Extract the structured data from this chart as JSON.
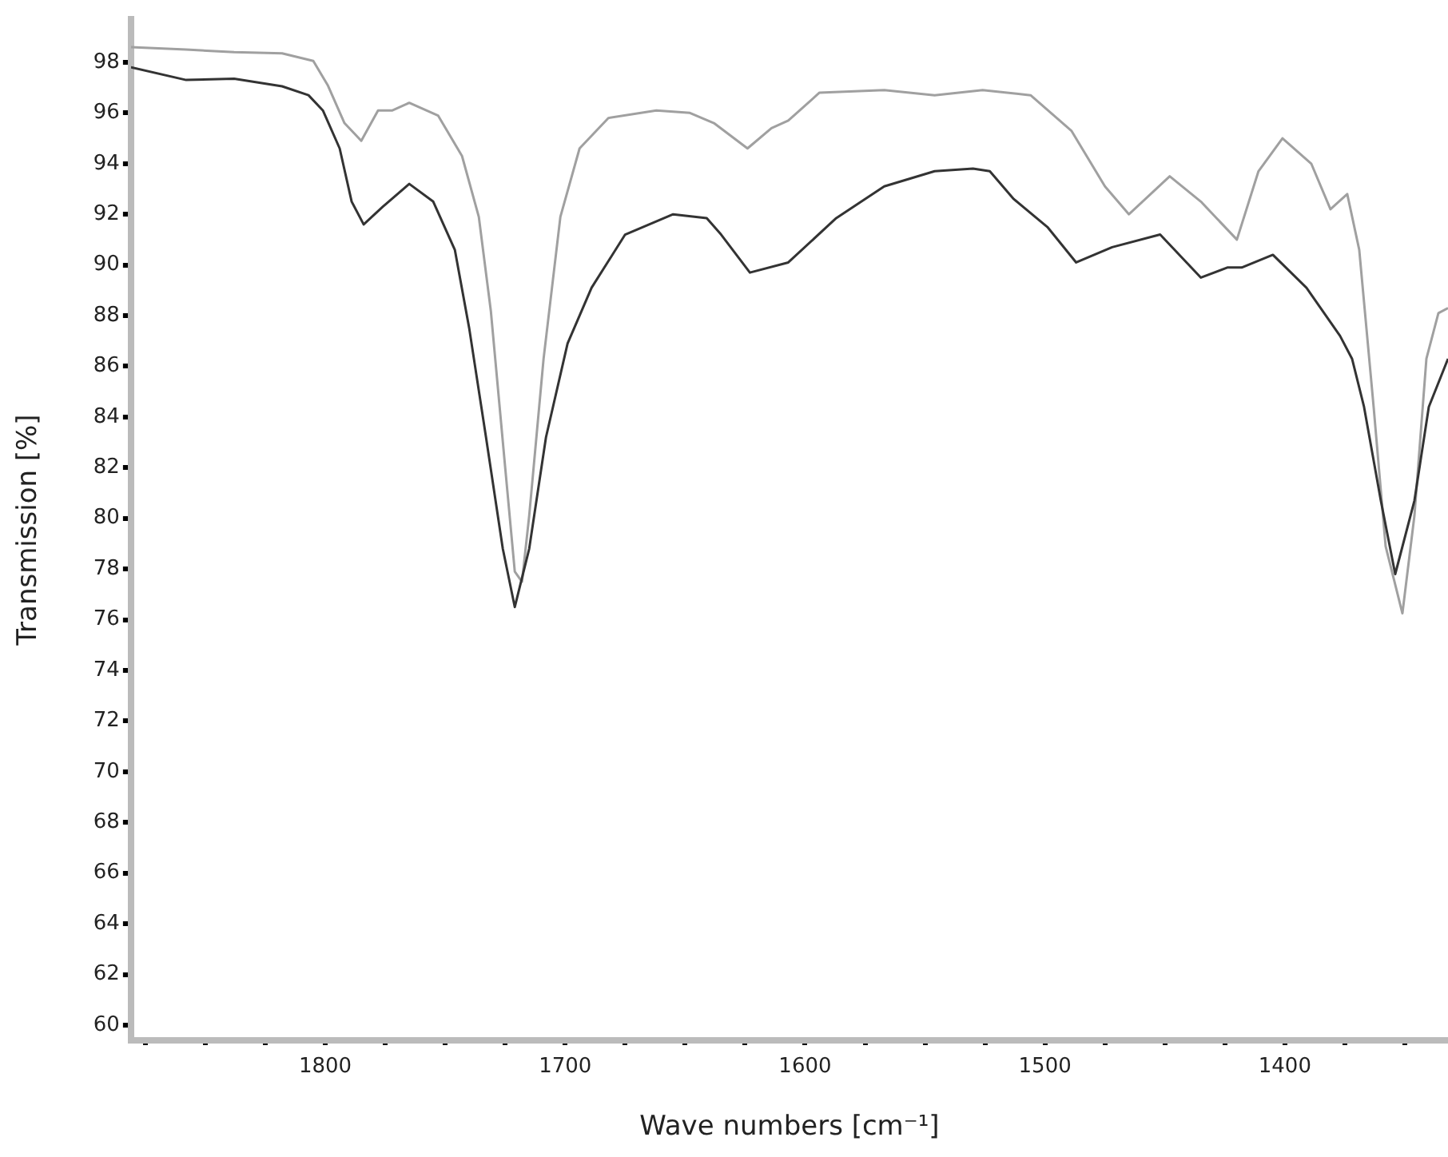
{
  "chart_data": {
    "type": "line",
    "xlabel": "Wave numbers [cm⁻¹]",
    "ylabel": "Transmission [%]",
    "xlim": [
      1881,
      1332
    ],
    "ylim": [
      59.4,
      99.7
    ],
    "xticks": [
      {
        "value": 1875,
        "label": null
      },
      {
        "value": 1850,
        "label": null
      },
      {
        "value": 1825,
        "label": null
      },
      1800,
      {
        "value": 1775,
        "label": null
      },
      {
        "value": 1750,
        "label": null
      },
      {
        "value": 1725,
        "label": null
      },
      1700,
      {
        "value": 1675,
        "label": null
      },
      {
        "value": 1650,
        "label": null
      },
      {
        "value": 1625,
        "label": null
      },
      1600,
      {
        "value": 1575,
        "label": null
      },
      {
        "value": 1550,
        "label": null
      },
      {
        "value": 1525,
        "label": null
      },
      1500,
      {
        "value": 1475,
        "label": null
      },
      {
        "value": 1450,
        "label": null
      },
      {
        "value": 1425,
        "label": null
      },
      1400,
      {
        "value": 1375,
        "label": null
      },
      {
        "value": 1350,
        "label": null
      }
    ],
    "yticks": [
      60,
      62,
      64,
      66,
      68,
      70,
      72,
      74,
      76,
      78,
      80,
      82,
      84,
      86,
      88,
      90,
      92,
      94,
      96,
      98
    ],
    "grid": false,
    "marker": "none",
    "legend": false,
    "series": [
      {
        "color": "#333333",
        "x": [
          1881,
          1858,
          1838,
          1818,
          1807,
          1801,
          1794,
          1789,
          1784,
          1776,
          1765,
          1755,
          1746,
          1740,
          1733,
          1726,
          1721,
          1715,
          1708,
          1699,
          1689,
          1675,
          1655,
          1641,
          1635,
          1623,
          1607,
          1587,
          1567,
          1546,
          1530,
          1523,
          1513,
          1499,
          1487,
          1472,
          1452,
          1435,
          1424,
          1418,
          1405,
          1391,
          1377,
          1372,
          1367,
          1360,
          1354,
          1346,
          1340,
          1332
        ],
        "values": [
          97.8,
          97.3,
          97.35,
          97.05,
          96.7,
          96.1,
          94.6,
          92.5,
          91.6,
          92.3,
          93.2,
          92.5,
          90.6,
          87.5,
          83.2,
          78.8,
          76.5,
          78.8,
          83.2,
          86.9,
          89.1,
          91.2,
          92.0,
          91.85,
          91.2,
          89.7,
          90.1,
          91.85,
          93.1,
          93.7,
          93.8,
          93.7,
          92.6,
          91.5,
          90.1,
          90.7,
          91.2,
          89.5,
          89.9,
          89.9,
          90.4,
          89.1,
          87.2,
          86.3,
          84.4,
          80.7,
          77.8,
          80.7,
          84.4,
          86.3
        ]
      },
      {
        "color": "#a0a0a0",
        "x": [
          1881,
          1858,
          1838,
          1818,
          1805,
          1799,
          1792,
          1785,
          1778,
          1772,
          1765,
          1753,
          1743,
          1736,
          1731,
          1725,
          1721,
          1718,
          1715,
          1709,
          1702,
          1694,
          1682,
          1662,
          1648,
          1638,
          1624,
          1614,
          1607,
          1594,
          1567,
          1546,
          1526,
          1506,
          1489,
          1475,
          1465,
          1448,
          1435,
          1420,
          1411,
          1401,
          1389,
          1381,
          1374,
          1369,
          1363,
          1358,
          1351,
          1346,
          1341,
          1336,
          1332
        ],
        "values": [
          98.6,
          98.5,
          98.4,
          98.35,
          98.05,
          97.1,
          95.6,
          94.9,
          96.1,
          96.1,
          96.4,
          95.9,
          94.3,
          91.9,
          88.2,
          82.0,
          77.9,
          77.5,
          80.1,
          86.3,
          91.9,
          94.6,
          95.8,
          96.1,
          96.0,
          95.6,
          94.6,
          95.4,
          95.7,
          96.8,
          96.9,
          96.7,
          96.9,
          96.7,
          95.3,
          93.1,
          92.0,
          93.5,
          92.5,
          91.0,
          93.7,
          95.0,
          94.0,
          92.2,
          92.8,
          90.6,
          84.4,
          78.9,
          76.25,
          80.1,
          86.3,
          88.1,
          88.3
        ]
      }
    ]
  }
}
